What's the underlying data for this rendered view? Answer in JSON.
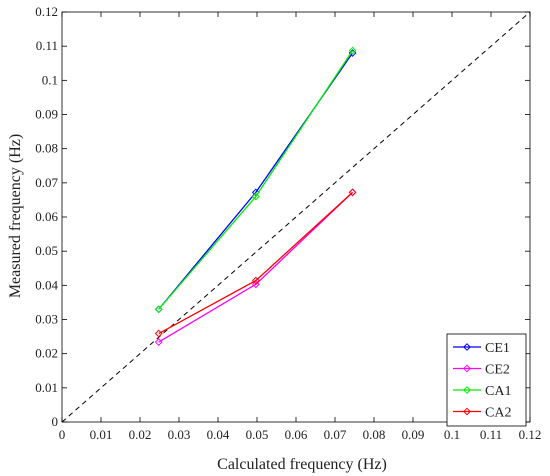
{
  "chart_data": {
    "type": "line",
    "xlabel": "Calculated frequency (Hz)",
    "ylabel": "Measured frequency (Hz)",
    "xlim": [
      0,
      0.12
    ],
    "ylim": [
      0,
      0.12
    ],
    "xticks": [
      "0",
      "0.01",
      "0.02",
      "0.03",
      "0.04",
      "0.05",
      "0.06",
      "0.07",
      "0.08",
      "0.09",
      "0.1",
      "0.11",
      "0.12"
    ],
    "yticks": [
      "0",
      "0.01",
      "0.02",
      "0.03",
      "0.04",
      "0.05",
      "0.06",
      "0.07",
      "0.08",
      "0.09",
      "0.1",
      "0.11",
      "0.12"
    ],
    "grid": false,
    "legend_position": "bottom-right",
    "reference_line": {
      "style": "dashed",
      "color": "#000000",
      "from": [
        0,
        0
      ],
      "to": [
        0.12,
        0.12
      ]
    },
    "series": [
      {
        "name": "CE1",
        "color": "#0000ff",
        "marker": "diamond",
        "x": [
          0.0248,
          0.0497,
          0.0745
        ],
        "y": [
          0.033,
          0.0672,
          0.108
        ]
      },
      {
        "name": "CE2",
        "color": "#ff00ff",
        "marker": "diamond",
        "x": [
          0.0248,
          0.0497,
          0.0745
        ],
        "y": [
          0.0234,
          0.0403,
          0.0672
        ]
      },
      {
        "name": "CA1",
        "color": "#00ee00",
        "marker": "diamond",
        "x": [
          0.0248,
          0.0497,
          0.0745
        ],
        "y": [
          0.033,
          0.066,
          0.1087
        ]
      },
      {
        "name": "CA2",
        "color": "#ff0000",
        "marker": "diamond",
        "x": [
          0.0248,
          0.0497,
          0.0745
        ],
        "y": [
          0.0259,
          0.0414,
          0.0672
        ]
      }
    ]
  }
}
